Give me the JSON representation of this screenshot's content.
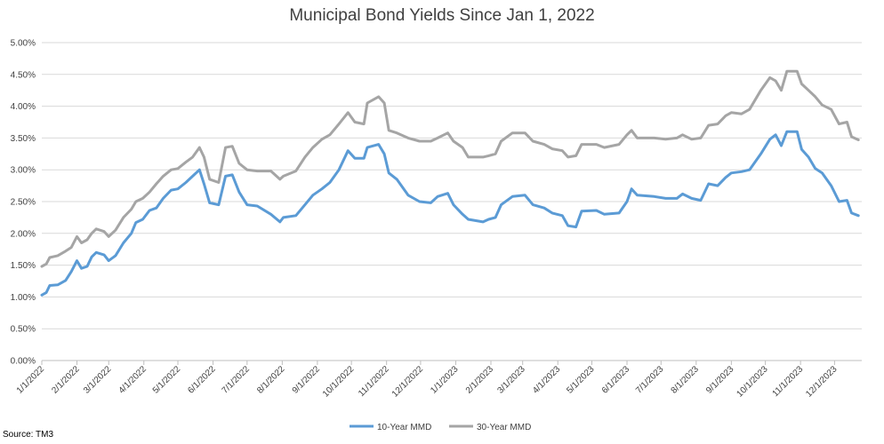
{
  "chart_data": {
    "type": "line",
    "title": "Municipal Bond Yields Since Jan 1, 2022",
    "xlabel": "",
    "ylabel": "",
    "source": "Source: TM3",
    "ylim": [
      0,
      5
    ],
    "yticks": [
      "0.00%",
      "0.50%",
      "1.00%",
      "1.50%",
      "2.00%",
      "2.50%",
      "3.00%",
      "3.50%",
      "4.00%",
      "4.50%",
      "5.00%"
    ],
    "xticks": [
      "1/1/2022",
      "2/1/2022",
      "3/1/2022",
      "4/1/2022",
      "5/1/2022",
      "6/1/2022",
      "7/1/2022",
      "8/1/2022",
      "9/1/2022",
      "10/1/2022",
      "11/1/2022",
      "12/1/2022",
      "1/1/2023",
      "2/1/2023",
      "3/1/2023",
      "4/1/2023",
      "5/1/2023",
      "6/1/2023",
      "7/1/2023",
      "8/1/2023",
      "9/1/2023",
      "10/1/2023",
      "11/1/2023",
      "12/1/2023"
    ],
    "grid": true,
    "legend_position": "bottom",
    "series": [
      {
        "name": "10-Year MMD",
        "color": "#5b9bd5",
        "points": [
          [
            "2022-01-01",
            1.03
          ],
          [
            "2022-01-05",
            1.07
          ],
          [
            "2022-01-08",
            1.18
          ],
          [
            "2022-01-15",
            1.19
          ],
          [
            "2022-01-22",
            1.26
          ],
          [
            "2022-01-27",
            1.4
          ],
          [
            "2022-02-01",
            1.57
          ],
          [
            "2022-02-05",
            1.45
          ],
          [
            "2022-02-10",
            1.48
          ],
          [
            "2022-02-14",
            1.63
          ],
          [
            "2022-02-18",
            1.7
          ],
          [
            "2022-02-25",
            1.66
          ],
          [
            "2022-03-01",
            1.57
          ],
          [
            "2022-03-07",
            1.65
          ],
          [
            "2022-03-14",
            1.85
          ],
          [
            "2022-03-21",
            2.0
          ],
          [
            "2022-03-25",
            2.17
          ],
          [
            "2022-03-31",
            2.22
          ],
          [
            "2022-04-06",
            2.36
          ],
          [
            "2022-04-12",
            2.4
          ],
          [
            "2022-04-18",
            2.55
          ],
          [
            "2022-04-25",
            2.68
          ],
          [
            "2022-05-01",
            2.7
          ],
          [
            "2022-05-08",
            2.8
          ],
          [
            "2022-05-14",
            2.9
          ],
          [
            "2022-05-20",
            3.0
          ],
          [
            "2022-05-24",
            2.78
          ],
          [
            "2022-05-29",
            2.48
          ],
          [
            "2022-06-06",
            2.45
          ],
          [
            "2022-06-12",
            2.9
          ],
          [
            "2022-06-18",
            2.92
          ],
          [
            "2022-06-24",
            2.65
          ],
          [
            "2022-07-01",
            2.45
          ],
          [
            "2022-07-10",
            2.43
          ],
          [
            "2022-07-22",
            2.3
          ],
          [
            "2022-07-30",
            2.18
          ],
          [
            "2022-08-02",
            2.25
          ],
          [
            "2022-08-13",
            2.28
          ],
          [
            "2022-08-21",
            2.45
          ],
          [
            "2022-08-28",
            2.6
          ],
          [
            "2022-09-05",
            2.7
          ],
          [
            "2022-09-12",
            2.8
          ],
          [
            "2022-09-20",
            3.0
          ],
          [
            "2022-09-28",
            3.3
          ],
          [
            "2022-10-04",
            3.18
          ],
          [
            "2022-10-12",
            3.18
          ],
          [
            "2022-10-15",
            3.35
          ],
          [
            "2022-10-25",
            3.4
          ],
          [
            "2022-10-30",
            3.25
          ],
          [
            "2022-11-03",
            2.95
          ],
          [
            "2022-11-10",
            2.85
          ],
          [
            "2022-11-20",
            2.6
          ],
          [
            "2022-11-30",
            2.5
          ],
          [
            "2022-12-10",
            2.48
          ],
          [
            "2022-12-16",
            2.58
          ],
          [
            "2022-12-25",
            2.63
          ],
          [
            "2022-12-30",
            2.45
          ],
          [
            "2023-01-07",
            2.3
          ],
          [
            "2023-01-12",
            2.22
          ],
          [
            "2023-01-25",
            2.18
          ],
          [
            "2023-01-30",
            2.22
          ],
          [
            "2023-02-05",
            2.25
          ],
          [
            "2023-02-10",
            2.45
          ],
          [
            "2023-02-20",
            2.58
          ],
          [
            "2023-03-03",
            2.6
          ],
          [
            "2023-03-10",
            2.45
          ],
          [
            "2023-03-20",
            2.4
          ],
          [
            "2023-03-27",
            2.32
          ],
          [
            "2023-04-05",
            2.28
          ],
          [
            "2023-04-10",
            2.12
          ],
          [
            "2023-04-17",
            2.1
          ],
          [
            "2023-04-22",
            2.35
          ],
          [
            "2023-05-05",
            2.36
          ],
          [
            "2023-05-12",
            2.3
          ],
          [
            "2023-05-25",
            2.32
          ],
          [
            "2023-06-01",
            2.5
          ],
          [
            "2023-06-05",
            2.7
          ],
          [
            "2023-06-10",
            2.6
          ],
          [
            "2023-06-25",
            2.58
          ],
          [
            "2023-07-05",
            2.55
          ],
          [
            "2023-07-15",
            2.55
          ],
          [
            "2023-07-20",
            2.62
          ],
          [
            "2023-07-28",
            2.55
          ],
          [
            "2023-08-05",
            2.52
          ],
          [
            "2023-08-12",
            2.78
          ],
          [
            "2023-08-20",
            2.75
          ],
          [
            "2023-08-27",
            2.88
          ],
          [
            "2023-09-01",
            2.95
          ],
          [
            "2023-09-10",
            2.97
          ],
          [
            "2023-09-17",
            3.0
          ],
          [
            "2023-09-27",
            3.25
          ],
          [
            "2023-10-05",
            3.48
          ],
          [
            "2023-10-10",
            3.55
          ],
          [
            "2023-10-15",
            3.38
          ],
          [
            "2023-10-20",
            3.6
          ],
          [
            "2023-10-29",
            3.6
          ],
          [
            "2023-11-02",
            3.32
          ],
          [
            "2023-11-08",
            3.2
          ],
          [
            "2023-11-14",
            3.02
          ],
          [
            "2023-11-20",
            2.95
          ],
          [
            "2023-11-28",
            2.75
          ],
          [
            "2023-12-05",
            2.5
          ],
          [
            "2023-12-12",
            2.52
          ],
          [
            "2023-12-16",
            2.32
          ],
          [
            "2023-12-22",
            2.28
          ]
        ]
      },
      {
        "name": "30-Year MMD",
        "color": "#a5a5a5",
        "points": [
          [
            "2022-01-01",
            1.48
          ],
          [
            "2022-01-05",
            1.52
          ],
          [
            "2022-01-08",
            1.62
          ],
          [
            "2022-01-15",
            1.65
          ],
          [
            "2022-01-22",
            1.72
          ],
          [
            "2022-01-27",
            1.78
          ],
          [
            "2022-02-01",
            1.95
          ],
          [
            "2022-02-05",
            1.85
          ],
          [
            "2022-02-10",
            1.9
          ],
          [
            "2022-02-14",
            2.0
          ],
          [
            "2022-02-18",
            2.07
          ],
          [
            "2022-02-25",
            2.03
          ],
          [
            "2022-03-01",
            1.95
          ],
          [
            "2022-03-07",
            2.05
          ],
          [
            "2022-03-14",
            2.25
          ],
          [
            "2022-03-21",
            2.38
          ],
          [
            "2022-03-25",
            2.5
          ],
          [
            "2022-03-31",
            2.55
          ],
          [
            "2022-04-06",
            2.65
          ],
          [
            "2022-04-12",
            2.78
          ],
          [
            "2022-04-18",
            2.9
          ],
          [
            "2022-04-25",
            3.0
          ],
          [
            "2022-05-01",
            3.02
          ],
          [
            "2022-05-08",
            3.12
          ],
          [
            "2022-05-14",
            3.2
          ],
          [
            "2022-05-20",
            3.35
          ],
          [
            "2022-05-24",
            3.2
          ],
          [
            "2022-05-29",
            2.85
          ],
          [
            "2022-06-06",
            2.8
          ],
          [
            "2022-06-12",
            3.35
          ],
          [
            "2022-06-18",
            3.37
          ],
          [
            "2022-06-24",
            3.1
          ],
          [
            "2022-07-01",
            3.0
          ],
          [
            "2022-07-10",
            2.98
          ],
          [
            "2022-07-22",
            2.98
          ],
          [
            "2022-07-30",
            2.85
          ],
          [
            "2022-08-02",
            2.9
          ],
          [
            "2022-08-13",
            2.98
          ],
          [
            "2022-08-21",
            3.2
          ],
          [
            "2022-08-28",
            3.35
          ],
          [
            "2022-09-05",
            3.48
          ],
          [
            "2022-09-12",
            3.55
          ],
          [
            "2022-09-20",
            3.72
          ],
          [
            "2022-09-28",
            3.9
          ],
          [
            "2022-10-04",
            3.75
          ],
          [
            "2022-10-12",
            3.72
          ],
          [
            "2022-10-15",
            4.05
          ],
          [
            "2022-10-25",
            4.15
          ],
          [
            "2022-10-30",
            4.05
          ],
          [
            "2022-11-03",
            3.62
          ],
          [
            "2022-11-10",
            3.58
          ],
          [
            "2022-11-20",
            3.5
          ],
          [
            "2022-11-30",
            3.45
          ],
          [
            "2022-12-10",
            3.45
          ],
          [
            "2022-12-16",
            3.5
          ],
          [
            "2022-12-25",
            3.58
          ],
          [
            "2022-12-30",
            3.45
          ],
          [
            "2023-01-07",
            3.35
          ],
          [
            "2023-01-12",
            3.2
          ],
          [
            "2023-01-25",
            3.2
          ],
          [
            "2023-01-30",
            3.22
          ],
          [
            "2023-02-05",
            3.25
          ],
          [
            "2023-02-10",
            3.45
          ],
          [
            "2023-02-20",
            3.58
          ],
          [
            "2023-03-03",
            3.58
          ],
          [
            "2023-03-10",
            3.45
          ],
          [
            "2023-03-20",
            3.4
          ],
          [
            "2023-03-27",
            3.33
          ],
          [
            "2023-04-05",
            3.3
          ],
          [
            "2023-04-10",
            3.2
          ],
          [
            "2023-04-17",
            3.22
          ],
          [
            "2023-04-22",
            3.4
          ],
          [
            "2023-05-05",
            3.4
          ],
          [
            "2023-05-12",
            3.35
          ],
          [
            "2023-05-25",
            3.4
          ],
          [
            "2023-06-01",
            3.55
          ],
          [
            "2023-06-05",
            3.62
          ],
          [
            "2023-06-10",
            3.5
          ],
          [
            "2023-06-25",
            3.5
          ],
          [
            "2023-07-05",
            3.48
          ],
          [
            "2023-07-15",
            3.5
          ],
          [
            "2023-07-20",
            3.55
          ],
          [
            "2023-07-28",
            3.48
          ],
          [
            "2023-08-05",
            3.5
          ],
          [
            "2023-08-12",
            3.7
          ],
          [
            "2023-08-20",
            3.72
          ],
          [
            "2023-08-27",
            3.85
          ],
          [
            "2023-09-01",
            3.9
          ],
          [
            "2023-09-10",
            3.88
          ],
          [
            "2023-09-17",
            3.95
          ],
          [
            "2023-09-27",
            4.25
          ],
          [
            "2023-10-05",
            4.45
          ],
          [
            "2023-10-10",
            4.4
          ],
          [
            "2023-10-15",
            4.25
          ],
          [
            "2023-10-20",
            4.55
          ],
          [
            "2023-10-29",
            4.55
          ],
          [
            "2023-11-02",
            4.35
          ],
          [
            "2023-11-08",
            4.25
          ],
          [
            "2023-11-14",
            4.15
          ],
          [
            "2023-11-20",
            4.02
          ],
          [
            "2023-11-28",
            3.95
          ],
          [
            "2023-12-05",
            3.72
          ],
          [
            "2023-12-12",
            3.75
          ],
          [
            "2023-12-16",
            3.52
          ],
          [
            "2023-12-22",
            3.47
          ]
        ]
      }
    ]
  }
}
